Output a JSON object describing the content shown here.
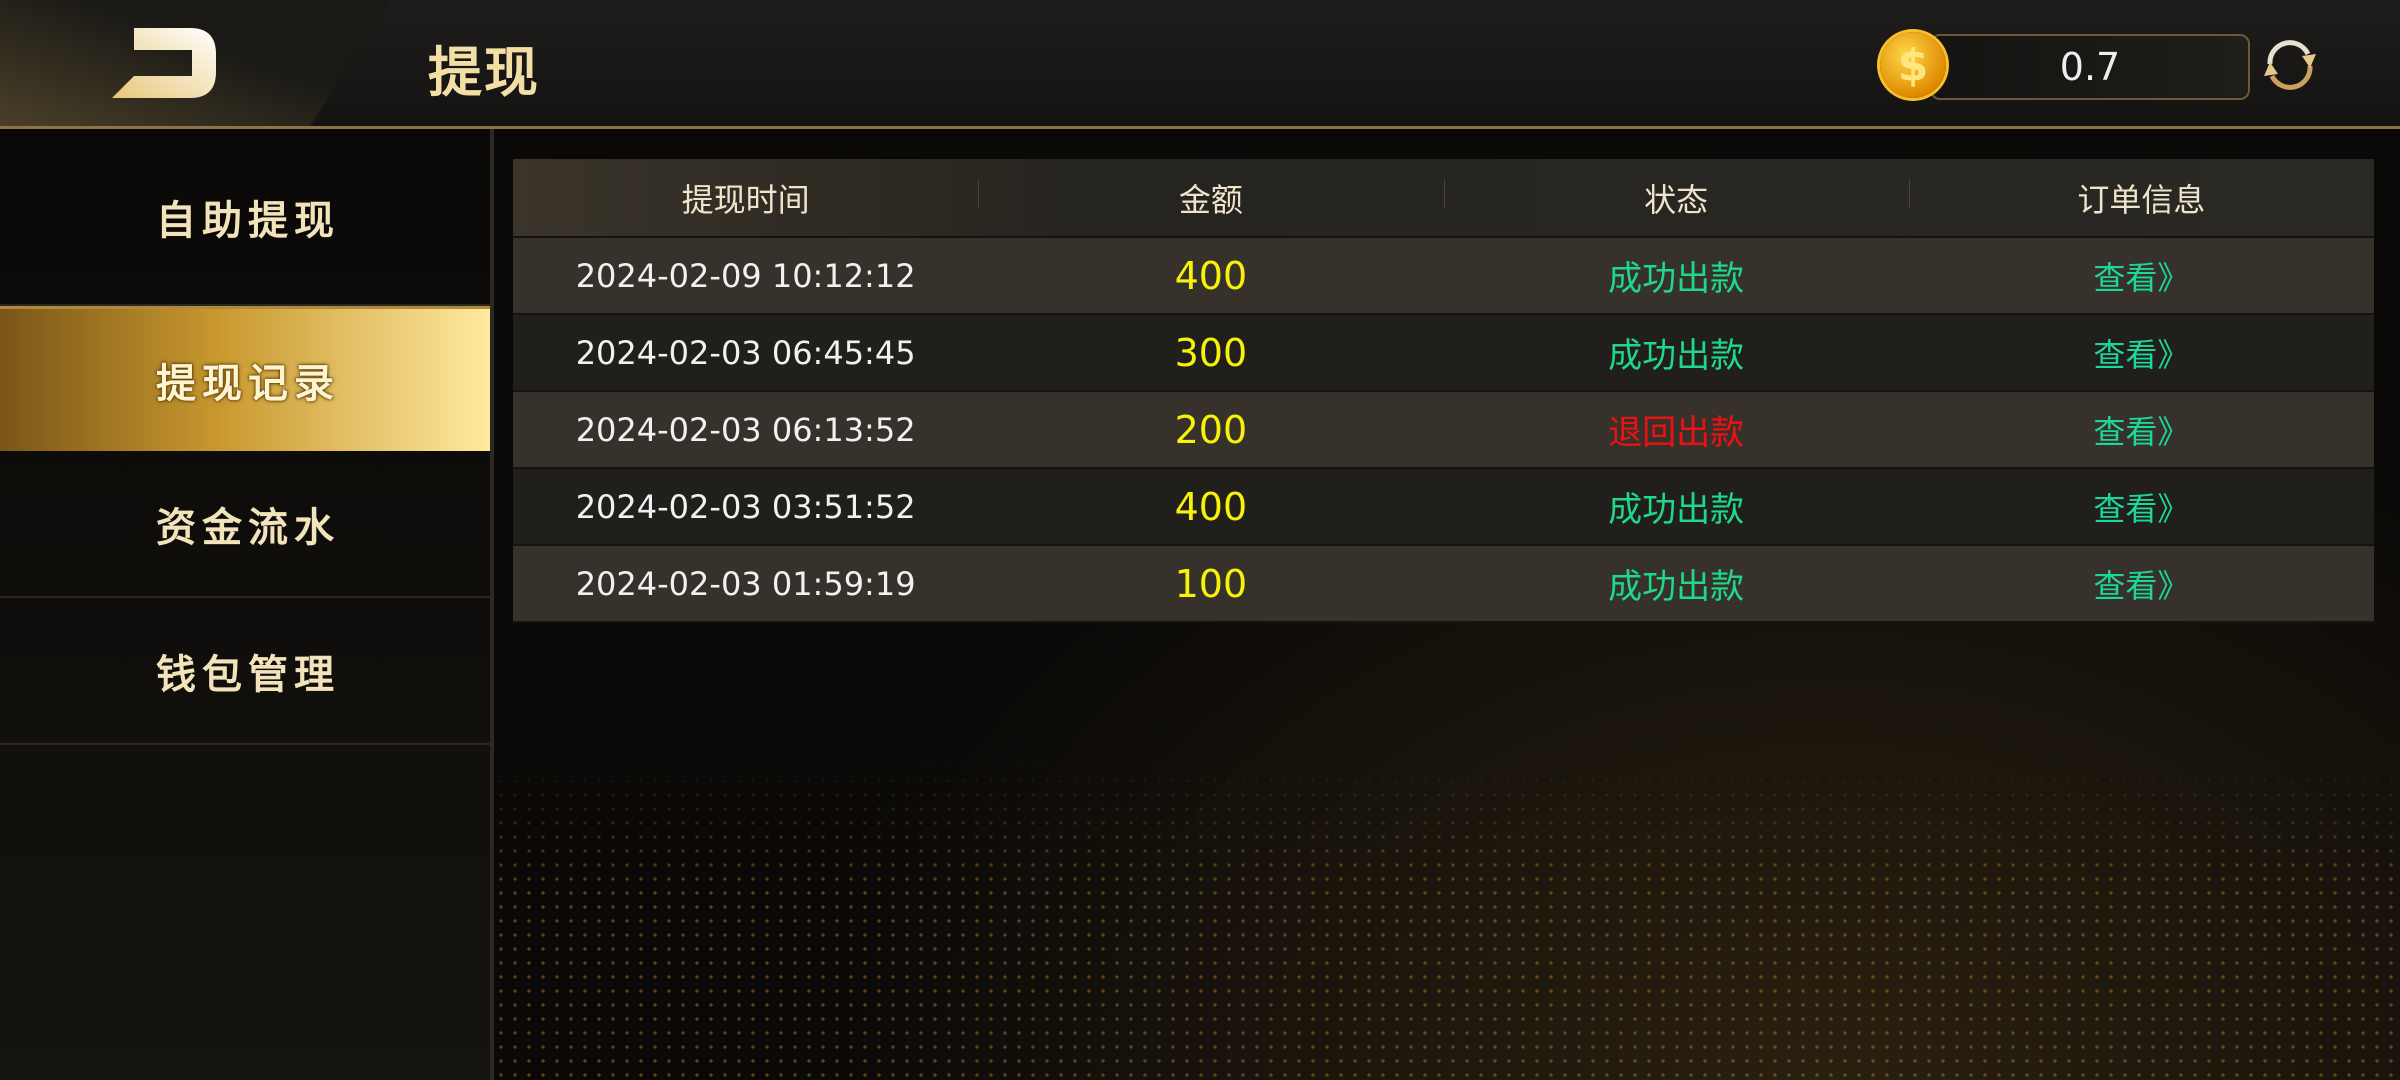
{
  "header": {
    "title": "提现",
    "balance": "0.7",
    "coin_symbol": "$"
  },
  "sidebar": {
    "items": [
      {
        "label": "自助提现",
        "active": false
      },
      {
        "label": "提现记录",
        "active": true
      },
      {
        "label": "资金流水",
        "active": false
      },
      {
        "label": "钱包管理",
        "active": false
      }
    ]
  },
  "table": {
    "columns": [
      "提现时间",
      "金额",
      "状态",
      "订单信息"
    ],
    "rows": [
      {
        "time": "2024-02-09 10:12:12",
        "amount": "400",
        "status": "成功出款",
        "action": "查看》"
      },
      {
        "time": "2024-02-03 06:45:45",
        "amount": "300",
        "status": "成功出款",
        "action": "查看》"
      },
      {
        "time": "2024-02-03 06:13:52",
        "amount": "200",
        "status": "退回出款",
        "action": "查看》"
      },
      {
        "time": "2024-02-03 03:51:52",
        "amount": "400",
        "status": "成功出款",
        "action": "查看》"
      },
      {
        "time": "2024-02-03 01:59:19",
        "amount": "100",
        "status": "成功出款",
        "action": "查看》"
      }
    ]
  },
  "colors": {
    "success": "#1ed98a",
    "returned": "#ee1111",
    "amount": "#f8f20a",
    "accent": "#d9b86a"
  }
}
